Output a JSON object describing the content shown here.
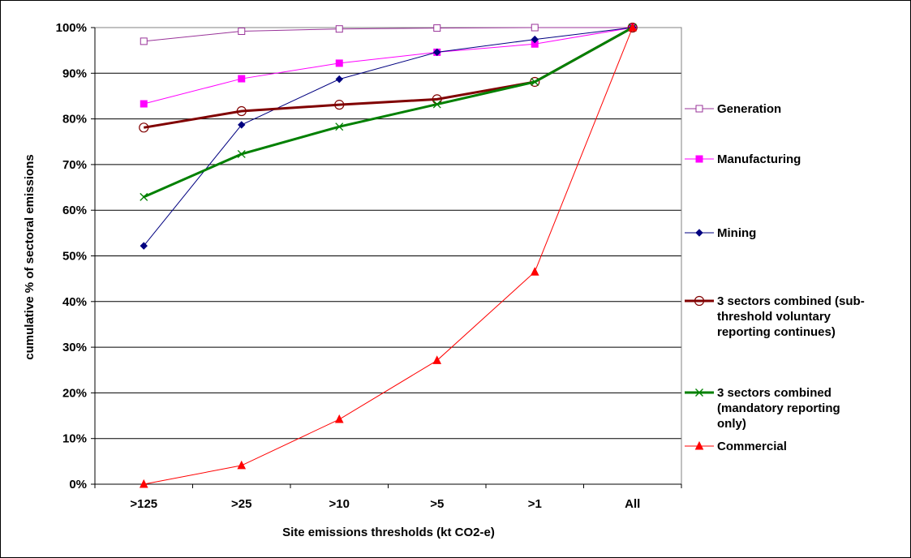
{
  "chart_data": {
    "type": "line",
    "categories": [
      ">125",
      ">25",
      ">10",
      ">5",
      ">1",
      "All"
    ],
    "xlabel": "Site emissions thresholds (kt CO2-e)",
    "ylabel": "cumulative % of sectoral emissions",
    "ylim": [
      0,
      100
    ],
    "yticks": [
      "0%",
      "10%",
      "20%",
      "30%",
      "40%",
      "50%",
      "60%",
      "70%",
      "80%",
      "90%",
      "100%"
    ],
    "grid": true,
    "legend_position": "right",
    "series": [
      {
        "name": "Generation",
        "values": [
          97,
          99.2,
          99.7,
          99.9,
          100,
          100
        ],
        "color": "#993399",
        "marker": "open-square",
        "width": 1
      },
      {
        "name": "Manufacturing",
        "values": [
          83.3,
          88.8,
          92.2,
          94.6,
          96.4,
          100
        ],
        "color": "#ff00ff",
        "marker": "filled-square",
        "width": 1
      },
      {
        "name": "Mining",
        "values": [
          52.2,
          78.7,
          88.7,
          94.6,
          97.4,
          100
        ],
        "color": "#000080",
        "marker": "diamond",
        "width": 1
      },
      {
        "name": "3 sectors combined (sub-threshold voluntary reporting continues)",
        "legend_lines": [
          "3 sectors combined (sub-",
          "threshold voluntary",
          "reporting continues)"
        ],
        "values": [
          78.1,
          81.7,
          83.1,
          84.3,
          88.1,
          100
        ],
        "color": "#800000",
        "marker": "open-circle",
        "width": 3
      },
      {
        "name": "3 sectors combined (mandatory reporting only)",
        "legend_lines": [
          "3 sectors combined",
          "(mandatory reporting",
          "only)"
        ],
        "values": [
          62.9,
          72.3,
          78.3,
          83.2,
          88.1,
          100
        ],
        "color": "#008000",
        "marker": "x",
        "width": 3
      },
      {
        "name": "Commercial",
        "values": [
          0,
          4.1,
          14.2,
          27.1,
          46.5,
          100
        ],
        "color": "#ff0000",
        "marker": "triangle",
        "width": 1
      }
    ]
  }
}
